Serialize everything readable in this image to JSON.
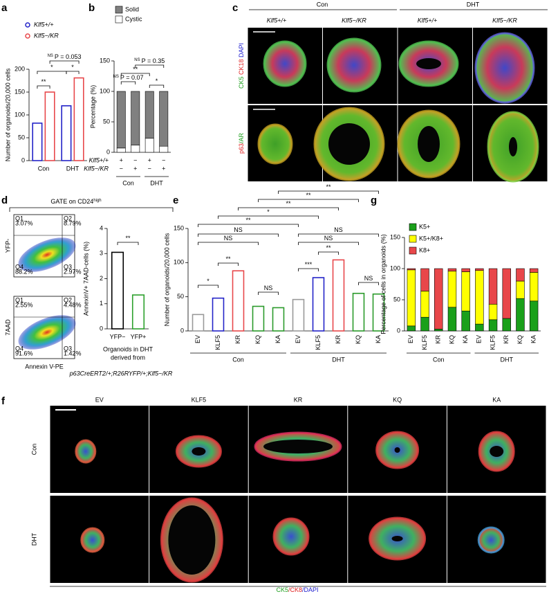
{
  "panel_letters": [
    "a",
    "b",
    "c",
    "d",
    "e",
    "f",
    "g"
  ],
  "chart_data": [
    {
      "type": "bar",
      "ylabel": "Number of organoids/20,000 cells",
      "categories": [
        "Con",
        "DHT"
      ],
      "series": [
        {
          "name": "Klf5+/+",
          "color": "#2323c8",
          "values": [
            82,
            120
          ]
        },
        {
          "name": "Klf5−/KR",
          "color": "#e8474a",
          "values": [
            150,
            181
          ]
        }
      ],
      "ylim": [
        0,
        200
      ],
      "yticks": [
        0,
        50,
        100,
        150,
        200
      ],
      "annotations": [
        "**",
        "*",
        "*",
        "NS",
        "P = 0.053"
      ]
    },
    {
      "type": "stacked_bar",
      "ylabel": "Percentage (%)",
      "series": [
        {
          "name": "Cystic",
          "color": "#ffffff",
          "values": [
            7,
            12,
            23,
            10
          ]
        },
        {
          "name": "Solid",
          "color": "#808080",
          "values": [
            93,
            88,
            77,
            90
          ]
        }
      ],
      "rows": [
        {
          "name": "Klf5+/+",
          "marks": [
            "+",
            "−",
            "+",
            "−"
          ]
        },
        {
          "name": "Klf5−/KR",
          "marks": [
            "−",
            "+",
            "−",
            "+"
          ]
        }
      ],
      "groups": [
        "Con",
        "DHT"
      ],
      "ylim": [
        0,
        150
      ],
      "yticks": [
        0,
        50,
        100,
        150
      ],
      "annotations": [
        "NS",
        "P = 0.07",
        "**",
        "NS",
        "P = 0.35",
        "*"
      ]
    },
    {
      "type": "bar",
      "ylabel": "AnnexinV+ 7AAD-cells (%)",
      "categories": [
        "YFP−",
        "YFP+"
      ],
      "values": [
        3.05,
        1.35
      ],
      "colors": [
        "#000000",
        "#2ca02c"
      ],
      "ylim": [
        0,
        4
      ],
      "yticks": [
        0,
        1,
        2,
        3,
        4
      ],
      "xlabel": [
        "Organoids in DHT",
        "derived from"
      ],
      "genotype": "p63CreERT2/+;R26RYFP/+;Klf5−/KR",
      "annotations": [
        "**"
      ]
    },
    {
      "type": "bar",
      "ylabel": "Number of organoids/20,000 cells",
      "categories": [
        "EV",
        "KLF5",
        "KR",
        "KQ",
        "KA",
        "EV",
        "KLF5",
        "KR",
        "KQ",
        "KA"
      ],
      "values": [
        24,
        48,
        88,
        36,
        34,
        46,
        78,
        104,
        55,
        54
      ],
      "colors": [
        "#999999",
        "#2323c8",
        "#e8474a",
        "#2a9a2a",
        "#2a9a2a",
        "#999999",
        "#2323c8",
        "#e8474a",
        "#2a9a2a",
        "#2a9a2a"
      ],
      "groups": [
        "Con",
        "DHT"
      ],
      "ylim": [
        0,
        150
      ],
      "yticks": [
        0,
        50,
        100,
        150
      ],
      "annotations": [
        "**",
        "**",
        "**",
        "*",
        "**",
        "NS",
        "NS",
        "NS",
        "NS",
        "**",
        "*",
        "NS",
        "**",
        "***",
        "NS"
      ]
    },
    {
      "type": "stacked_bar",
      "ylabel": "Percentage of cells in organoids (%)",
      "categories": [
        "EV",
        "KLF5",
        "KR",
        "KQ",
        "KA",
        "EV",
        "KLF5",
        "KR",
        "KQ",
        "KA"
      ],
      "series": [
        {
          "name": "K5+",
          "color": "#1aa01a",
          "values": [
            8,
            22,
            3,
            38,
            32,
            11,
            18,
            20,
            52,
            48
          ]
        },
        {
          "name": "K5+/K8+",
          "color": "#ffff00",
          "values": [
            90,
            42,
            0,
            58,
            63,
            86,
            25,
            0,
            28,
            46
          ]
        },
        {
          "name": "K8+",
          "color": "#e8474a",
          "values": [
            2,
            36,
            97,
            4,
            5,
            3,
            57,
            80,
            20,
            6
          ]
        }
      ],
      "groups": [
        "Con",
        "DHT"
      ],
      "ylim": [
        0,
        150
      ],
      "yticks": [
        0,
        50,
        100,
        150
      ]
    }
  ],
  "panel_c": {
    "conditions": [
      "Con",
      "DHT"
    ],
    "genotypes": [
      "Klf5+/+",
      "Klf5−/KR",
      "Klf5+/+",
      "Klf5−/KR"
    ],
    "stains": [
      [
        "CK5",
        " CK18",
        " DAPI"
      ],
      [
        "p63",
        "/AR"
      ]
    ]
  },
  "panel_d": {
    "gate": [
      "GATE on CD24",
      "high"
    ],
    "xlabel": "Annexin V-PE",
    "plots": [
      {
        "ylabel": "YFP-",
        "quadrants": [
          [
            "Q1",
            "3.07%"
          ],
          [
            "Q2",
            "8.79%"
          ],
          [
            "Q4",
            "88.2%"
          ],
          [
            "Q3",
            "2.97%"
          ]
        ]
      },
      {
        "ylabel": "7AAD",
        "quadrants": [
          [
            "Q1",
            "2.55%"
          ],
          [
            "Q2",
            "4.48%"
          ],
          [
            "Q4",
            "91.6%"
          ],
          [
            "Q3",
            "1.42%"
          ]
        ]
      }
    ]
  },
  "panel_f": {
    "columns": [
      "EV",
      "KLF5",
      "KR",
      "KQ",
      "KA"
    ],
    "rows": [
      "Con",
      "DHT"
    ],
    "stain": [
      "CK5",
      "/CK8",
      "/DAPI"
    ]
  }
}
